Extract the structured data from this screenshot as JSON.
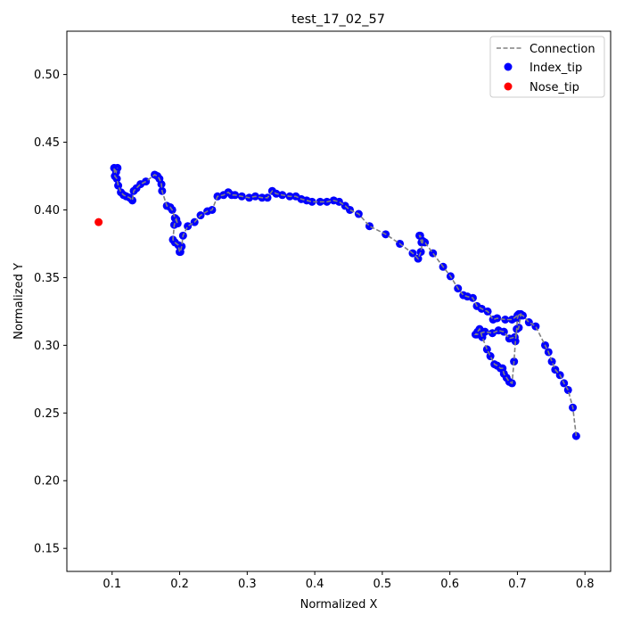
{
  "chart_data": {
    "type": "scatter",
    "title": "test_17_02_57",
    "xlabel": "Normalized X",
    "ylabel": "Normalized Y",
    "xlim": [
      0.033,
      0.838
    ],
    "ylim": [
      0.133,
      0.532
    ],
    "xticks": [
      "0.1",
      "0.2",
      "0.3",
      "0.4",
      "0.5",
      "0.6",
      "0.7",
      "0.8"
    ],
    "yticks": [
      "0.15",
      "0.20",
      "0.25",
      "0.30",
      "0.35",
      "0.40",
      "0.45",
      "0.50"
    ],
    "grid": false,
    "legend_position": "top-right",
    "series": [
      {
        "name": "Connection",
        "kind": "line",
        "style": "dashed",
        "color": "#808080"
      },
      {
        "name": "Index_tip",
        "kind": "scatter",
        "color": "#0000ff",
        "x": [
          0.787,
          0.782,
          0.775,
          0.769,
          0.763,
          0.756,
          0.751,
          0.746,
          0.741,
          0.727,
          0.717,
          0.708,
          0.702,
          0.7,
          0.699,
          0.697,
          0.695,
          0.692,
          0.688,
          0.684,
          0.68,
          0.678,
          0.675,
          0.67,
          0.666,
          0.66,
          0.655,
          0.648,
          0.644,
          0.641,
          0.638,
          0.64,
          0.645,
          0.652,
          0.663,
          0.672,
          0.68,
          0.688,
          0.696,
          0.702,
          0.705,
          0.7,
          0.692,
          0.682,
          0.67,
          0.664,
          0.656,
          0.647,
          0.64,
          0.634,
          0.626,
          0.62,
          0.612,
          0.601,
          0.59,
          0.575,
          0.563,
          0.558,
          0.555,
          0.556,
          0.56,
          0.557,
          0.553,
          0.545,
          0.526,
          0.505,
          0.481,
          0.465,
          0.452,
          0.445,
          0.436,
          0.428,
          0.418,
          0.408,
          0.396,
          0.388,
          0.38,
          0.372,
          0.363,
          0.352,
          0.343,
          0.337,
          0.33,
          0.322,
          0.312,
          0.303,
          0.292,
          0.282,
          0.277,
          0.272,
          0.265,
          0.256,
          0.248,
          0.241,
          0.231,
          0.222,
          0.212,
          0.205,
          0.203,
          0.201,
          0.2,
          0.198,
          0.193,
          0.19,
          0.192,
          0.195,
          0.197,
          0.193,
          0.189,
          0.186,
          0.181,
          0.174,
          0.173,
          0.17,
          0.167,
          0.163,
          0.15,
          0.142,
          0.136,
          0.132,
          0.13,
          0.126,
          0.121,
          0.117,
          0.113,
          0.109,
          0.107,
          0.104,
          0.103,
          0.106,
          0.108
        ],
        "y": [
          0.233,
          0.254,
          0.267,
          0.272,
          0.278,
          0.282,
          0.288,
          0.295,
          0.3,
          0.314,
          0.317,
          0.322,
          0.323,
          0.32,
          0.312,
          0.303,
          0.288,
          0.272,
          0.273,
          0.276,
          0.279,
          0.283,
          0.283,
          0.285,
          0.286,
          0.292,
          0.297,
          0.306,
          0.312,
          0.31,
          0.308,
          0.308,
          0.309,
          0.31,
          0.309,
          0.311,
          0.31,
          0.305,
          0.306,
          0.313,
          0.323,
          0.322,
          0.319,
          0.319,
          0.32,
          0.319,
          0.325,
          0.327,
          0.329,
          0.335,
          0.336,
          0.337,
          0.342,
          0.351,
          0.358,
          0.368,
          0.376,
          0.376,
          0.381,
          0.381,
          0.377,
          0.369,
          0.364,
          0.368,
          0.375,
          0.382,
          0.388,
          0.397,
          0.4,
          0.403,
          0.406,
          0.407,
          0.406,
          0.406,
          0.406,
          0.407,
          0.408,
          0.41,
          0.41,
          0.411,
          0.412,
          0.414,
          0.409,
          0.409,
          0.41,
          0.409,
          0.41,
          0.411,
          0.411,
          0.413,
          0.411,
          0.41,
          0.4,
          0.399,
          0.396,
          0.391,
          0.388,
          0.381,
          0.373,
          0.369,
          0.369,
          0.374,
          0.376,
          0.378,
          0.389,
          0.393,
          0.39,
          0.394,
          0.4,
          0.402,
          0.403,
          0.414,
          0.419,
          0.423,
          0.425,
          0.426,
          0.421,
          0.419,
          0.416,
          0.414,
          0.407,
          0.409,
          0.41,
          0.411,
          0.413,
          0.418,
          0.423,
          0.425,
          0.431,
          0.428,
          0.431
        ]
      },
      {
        "name": "Nose_tip",
        "kind": "scatter",
        "color": "#ff0000",
        "x": [
          0.08
        ],
        "y": [
          0.391
        ]
      }
    ]
  }
}
